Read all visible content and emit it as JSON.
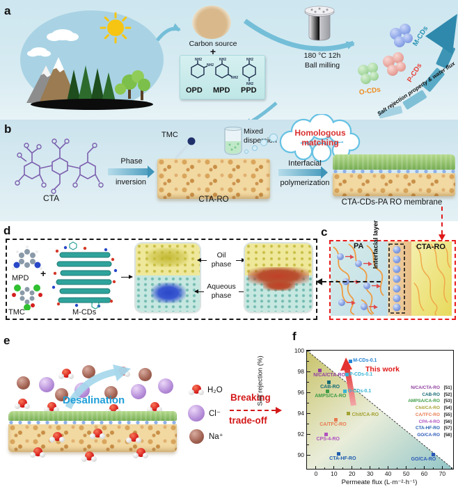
{
  "figure": {
    "panel_a": {
      "label": "a",
      "carbon_source": "Carbon source",
      "plus": "+",
      "nh2": "NH₂",
      "amine_1": "OPD",
      "amine_2": "MPD",
      "amine_3": "PPD",
      "milling_conditions": "180 °C  12h",
      "milling_method": "Ball milling",
      "mcds": "M-CDs",
      "pcds": "P-CDs",
      "ocds": "O-CDs",
      "arrow_label": "Salt rejection property & water flux",
      "colors": {
        "mcds_label": "#2a93b4",
        "pcds_label": "#e8433a",
        "ocds_label": "#f08c1e"
      }
    },
    "panel_b": {
      "label": "b",
      "cta": "CTA",
      "phase": "Phase",
      "inversion": "inversion",
      "cta_ro": "CTA-RO",
      "tmc": "TMC",
      "mixed": "Mixed",
      "dispersion": "dispersion",
      "homologous": "Homologous",
      "matching": "matching",
      "interfacial": "Interfacial",
      "polymerization": "polymerization",
      "membrane": "CTA-CDs-PA RO membrane",
      "cloud_text_color": "#d93030"
    },
    "panel_c": {
      "label": "c",
      "pa": "PA",
      "interfacial_layer": "Interfacial layer",
      "cta_ro": "CTA-RO"
    },
    "panel_d": {
      "label": "d",
      "mpd": "MPD",
      "plus": "+",
      "tmc": "TMC",
      "mcds": "M-CDs",
      "oil": "Oil",
      "oil_phase": "phase",
      "aqueous": "Aqueous",
      "aqueous_phase": "phase"
    },
    "panel_e": {
      "label": "e",
      "desalination": "Desalination",
      "desalination_color": "#1f9fd8",
      "legend_h2o": "H₂O",
      "legend_cl": "Cl⁻",
      "legend_na": "Na⁺",
      "breaking": "Breaking",
      "tradeoff": "trade-off",
      "breaking_color": "#d41818"
    },
    "panel_f": {
      "label": "f"
    }
  },
  "chart_data": {
    "type": "scatter",
    "title": "",
    "xlabel": "Permeate flux (L·m⁻²·h⁻¹)",
    "ylabel": "Salt rejection (%)",
    "xlim": [
      -5,
      76
    ],
    "ylim": [
      88.7,
      100
    ],
    "xticks": [
      0,
      10,
      20,
      30,
      40,
      50,
      60,
      70
    ],
    "yticks": [
      90,
      92,
      94,
      96,
      98,
      100
    ],
    "grid": false,
    "legend_position": "right-inside",
    "annotation": "This work",
    "annotation_color": "#e01818",
    "points": [
      {
        "label": "M-CDs-0.1",
        "x": 19,
        "y": 99.0,
        "color": "#2585d6",
        "label_pos": "right",
        "dx": 4
      },
      {
        "label": "P-CDs-0.1",
        "x": 17,
        "y": 97.7,
        "color": "#35b4d4",
        "label_pos": "right",
        "dx": 4
      },
      {
        "label": "O-CDs-0.1",
        "x": 16,
        "y": 96.1,
        "color": "#35b4d4",
        "label_pos": "right",
        "dx": 4
      },
      {
        "label": "N/CA/CTA-RO",
        "x": 2,
        "y": 98.1,
        "color": "#8f3f9f",
        "label_pos": "below",
        "dx": 14
      },
      {
        "label": "CAB-RO",
        "x": 7,
        "y": 97.0,
        "color": "#156a73",
        "label_pos": "below",
        "dx": 2
      },
      {
        "label": "AMPS/CA-RO",
        "x": 6.5,
        "y": 96.1,
        "color": "#3f9c45",
        "label_pos": "below",
        "dx": 4
      },
      {
        "label": "Chit/CA-RO",
        "x": 18,
        "y": 94.0,
        "color": "#a3a233",
        "label_pos": "right",
        "dx": 5,
        "dy": 3
      },
      {
        "label": "CA/TFC-RO",
        "x": 11,
        "y": 93.4,
        "color": "#e87a50",
        "label_pos": "below",
        "dx": -4
      },
      {
        "label": "CPS-4-RO",
        "x": 5.5,
        "y": 92.0,
        "color": "#b052c0",
        "label_pos": "below",
        "dx": 3
      },
      {
        "label": "CTA-HF-RO",
        "x": 12.5,
        "y": 90.15,
        "color": "#1f5cb0",
        "label_pos": "below",
        "dx": 6
      },
      {
        "label": "GO/CA-RO",
        "x": 65,
        "y": 90.05,
        "color": "#2b58b8",
        "label_pos": "below",
        "dx": -14
      }
    ],
    "legend": [
      {
        "name": "N/CA/CTA-RO",
        "ref": "[51]",
        "color": "#8f3f9f"
      },
      {
        "name": "CAB-RO",
        "ref": "[52]",
        "color": "#156a73"
      },
      {
        "name": "AMPSA/CA-RO",
        "ref": "[53]",
        "color": "#3f9c45"
      },
      {
        "name": "Chit/CA-RO",
        "ref": "[54]",
        "color": "#a3a233"
      },
      {
        "name": "CA/TFC-RO",
        "ref": "[55]",
        "color": "#e87a50"
      },
      {
        "name": "CPA-4-RO",
        "ref": "[56]",
        "color": "#b052c0"
      },
      {
        "name": "CTA-HF-RO",
        "ref": "[57]",
        "color": "#1f5cb0"
      },
      {
        "name": "GO/CA-RO",
        "ref": "[58]",
        "color": "#2b58b8"
      }
    ]
  }
}
